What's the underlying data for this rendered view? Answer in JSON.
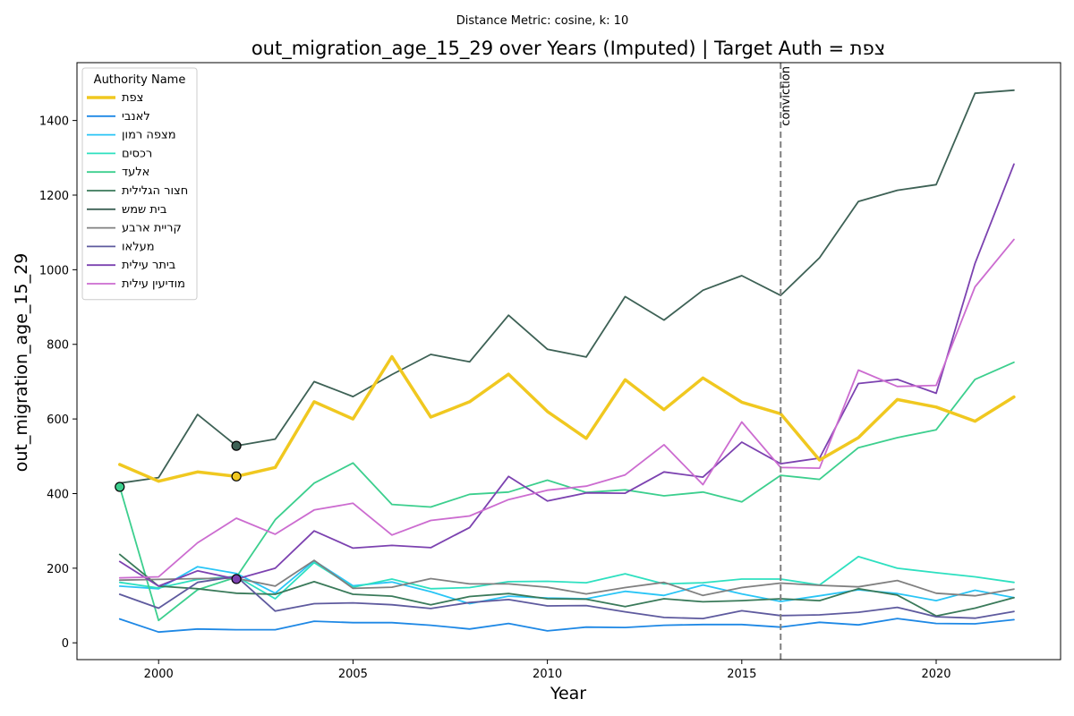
{
  "chart_data": {
    "type": "line",
    "subtitle": "Distance Metric: cosine, k: 10",
    "title": "out_migration_age_15_29 over Years (Imputed) | Target Auth = צפת",
    "xlabel": "Year",
    "ylabel": "out_migration_age_15_29",
    "xlim": [
      1997.9,
      2023.2
    ],
    "ylim": [
      -45,
      1555
    ],
    "x_ticks": [
      2000,
      2005,
      2010,
      2015,
      2020
    ],
    "y_ticks": [
      0,
      200,
      400,
      600,
      800,
      1000,
      1200,
      1400
    ],
    "grid": false,
    "legend_title": "Authority Name",
    "legend_position": "top-left",
    "x": [
      1999,
      2000,
      2001,
      2002,
      2003,
      2004,
      2005,
      2006,
      2007,
      2008,
      2009,
      2010,
      2011,
      2012,
      2013,
      2014,
      2015,
      2016,
      2017,
      2018,
      2019,
      2020,
      2021,
      2022
    ],
    "vertical_line": {
      "x": 2016,
      "label": "conviction",
      "color": "#808080"
    },
    "series": [
      {
        "name": "צפת",
        "color": "#f0c820",
        "width": 3.5,
        "values": [
          478,
          433,
          458,
          446,
          470,
          646,
          600,
          767,
          605,
          646,
          720,
          620,
          548,
          705,
          625,
          710,
          645,
          614,
          490,
          550,
          652,
          632,
          594,
          659
        ]
      },
      {
        "name": "לאנבי",
        "color": "#1e88e5",
        "width": 1.8,
        "values": [
          64,
          29,
          37,
          35,
          35,
          58,
          54,
          54,
          47,
          37,
          52,
          32,
          42,
          41,
          47,
          49,
          49,
          42,
          55,
          48,
          65,
          52,
          51,
          62
        ]
      },
      {
        "name": "מצפה רמון",
        "color": "#29c5f6",
        "width": 1.8,
        "values": [
          152,
          145,
          204,
          186,
          133,
          220,
          153,
          163,
          137,
          105,
          125,
          120,
          118,
          138,
          127,
          155,
          131,
          111,
          126,
          142,
          132,
          113,
          141,
          121
        ]
      },
      {
        "name": "רכסים",
        "color": "#2ee0c0",
        "width": 1.8,
        "values": [
          162,
          147,
          170,
          178,
          118,
          215,
          149,
          171,
          145,
          148,
          164,
          165,
          161,
          185,
          158,
          161,
          171,
          171,
          155,
          231,
          200,
          188,
          177,
          162
        ]
      },
      {
        "name": "אלעד",
        "color": "#3ccf8e",
        "width": 1.8,
        "values": [
          418,
          60,
          142,
          176,
          330,
          428,
          482,
          371,
          364,
          398,
          404,
          436,
          403,
          410,
          394,
          404,
          378,
          449,
          438,
          523,
          550,
          571,
          706,
          752
        ]
      },
      {
        "name": "חצור הגלילית",
        "color": "#3a7a5a",
        "width": 1.8,
        "values": [
          237,
          152,
          145,
          133,
          130,
          164,
          130,
          125,
          102,
          124,
          132,
          118,
          117,
          97,
          118,
          110,
          113,
          118,
          113,
          145,
          128,
          72,
          93,
          121
        ]
      },
      {
        "name": "בית שמש",
        "color": "#3d6155",
        "width": 1.8,
        "values": [
          428,
          443,
          612,
          528,
          546,
          700,
          660,
          719,
          773,
          753,
          878,
          787,
          766,
          928,
          865,
          945,
          984,
          931,
          1032,
          1183,
          1213,
          1228,
          1473,
          1481
        ]
      },
      {
        "name": "קריית ארבע",
        "color": "#808080",
        "width": 1.8,
        "values": [
          168,
          170,
          172,
          173,
          152,
          221,
          146,
          149,
          172,
          158,
          158,
          149,
          131,
          148,
          162,
          127,
          148,
          160,
          154,
          150,
          167,
          133,
          126,
          144
        ]
      },
      {
        "name": "מעלאו",
        "color": "#5e5a9e",
        "width": 1.8,
        "values": [
          130,
          93,
          162,
          178,
          85,
          105,
          107,
          102,
          92,
          108,
          116,
          99,
          100,
          83,
          68,
          65,
          86,
          73,
          75,
          82,
          95,
          70,
          66,
          84
        ]
      },
      {
        "name": "ביתר עילית",
        "color": "#7c42b0",
        "width": 1.8,
        "values": [
          218,
          152,
          193,
          171,
          200,
          300,
          254,
          261,
          255,
          309,
          446,
          380,
          402,
          401,
          458,
          444,
          538,
          480,
          495,
          695,
          706,
          669,
          1017,
          1283
        ]
      },
      {
        "name": "מודיעין עילית",
        "color": "#cc6cd0",
        "width": 1.8,
        "values": [
          174,
          177,
          268,
          334,
          291,
          356,
          374,
          289,
          328,
          340,
          384,
          409,
          420,
          450,
          531,
          424,
          592,
          470,
          468,
          731,
          687,
          690,
          954,
          1081
        ]
      }
    ],
    "markers": [
      {
        "x": 1999,
        "y": 418,
        "color": "#3ccf8e"
      },
      {
        "x": 2002,
        "y": 528,
        "color": "#3d6155"
      },
      {
        "x": 2002,
        "y": 446,
        "color": "#f0c820"
      },
      {
        "x": 2002,
        "y": 171,
        "color": "#7c42b0"
      }
    ]
  }
}
